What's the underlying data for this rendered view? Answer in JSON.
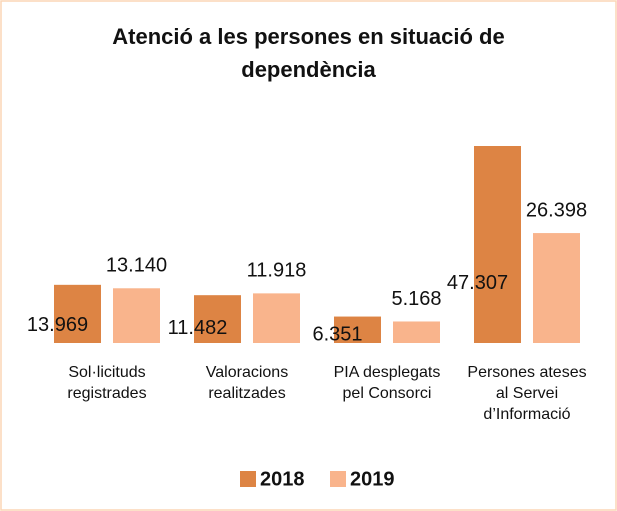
{
  "chart_data": {
    "type": "bar",
    "title": "Atenció a les persones en situació de dependència",
    "categories": [
      "Sol·licituds registrades",
      "Valoracions realitzades",
      "PIA desplegats pel Consorci",
      "Persones ateses al Servei d’Informació"
    ],
    "series": [
      {
        "name": "2018",
        "color": "#dd8444",
        "values": [
          13969,
          11482,
          6351,
          47307
        ],
        "value_labels": [
          "13.969",
          "11.482",
          "6.351",
          "47.307"
        ]
      },
      {
        "name": "2019",
        "color": "#f9b48c",
        "values": [
          13140,
          11918,
          5168,
          26398
        ],
        "value_labels": [
          "13.140",
          "11.918",
          "5.168",
          "26.398"
        ]
      }
    ]
  }
}
